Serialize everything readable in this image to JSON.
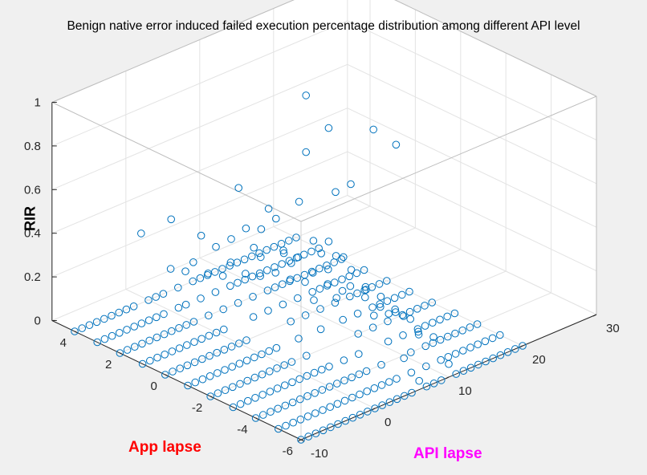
{
  "colors": {
    "background": "#f0f0f0",
    "pane": "#ffffff",
    "grid": "#e3e3e3",
    "axis": "#262626",
    "marker": "#0072bd",
    "xlabel_color": "#ff0000",
    "ylabel_color": "#ff00ff"
  },
  "chart_data": {
    "type": "scatter3",
    "title": "Benign native error induced failed execution percentage distribution among different API level",
    "xlabel": "App lapse",
    "ylabel": "API lapse",
    "zlabel": "RIR",
    "xlim": [
      -6,
      5
    ],
    "ylim": [
      -10,
      30
    ],
    "zlim": [
      0,
      1
    ],
    "xticks": [
      -6,
      -4,
      -2,
      0,
      2,
      4
    ],
    "yticks": [
      -10,
      0,
      10,
      20,
      30
    ],
    "zticks": [
      0,
      0.2,
      0.4,
      0.6,
      0.8,
      1
    ],
    "grid": true,
    "box": true,
    "marker": "circle",
    "grid_rows_app_lapse": [
      -6,
      -5,
      -4,
      -3,
      -2,
      -1,
      0,
      1,
      2,
      3,
      4
    ],
    "grid_cols_api_lapse": [
      -10,
      -9,
      -8,
      -7,
      -6,
      -5,
      -4,
      -3,
      -2,
      -1,
      0,
      1,
      2,
      3,
      4,
      5,
      6,
      7,
      8,
      9,
      10,
      11,
      12,
      13,
      14,
      15,
      16,
      17,
      18,
      19,
      20
    ],
    "baseline_rir": 0,
    "highlighted_points": [
      {
        "x": -2,
        "y": 6,
        "z": 1.0
      },
      {
        "x": -1,
        "y": 6,
        "z": 1.1
      },
      {
        "x": -1,
        "y": 6,
        "z": 0.84
      },
      {
        "x": -3,
        "y": 9,
        "z": 1.0
      },
      {
        "x": -4,
        "y": 9,
        "z": 0.98
      },
      {
        "x": -2,
        "y": 2,
        "z": 0.72
      },
      {
        "x": -2,
        "y": 9,
        "z": 0.7
      },
      {
        "x": -1,
        "y": 10,
        "z": 0.6
      },
      {
        "x": 1,
        "y": 3,
        "z": 0.62
      },
      {
        "x": 0,
        "y": 4,
        "z": 0.56
      },
      {
        "x": 0,
        "y": 5,
        "z": 0.5
      },
      {
        "x": 0,
        "y": 3,
        "z": 0.48
      },
      {
        "x": 3,
        "y": 0,
        "z": 0.42
      },
      {
        "x": 4,
        "y": -1,
        "z": 0.32
      },
      {
        "x": 2,
        "y": 1,
        "z": 0.38
      },
      {
        "x": 1,
        "y": 2,
        "z": 0.4
      },
      {
        "x": 0,
        "y": 2,
        "z": 0.41
      },
      {
        "x": -1,
        "y": 3,
        "z": 0.42
      },
      {
        "x": -2,
        "y": 5,
        "z": 0.44
      },
      {
        "x": -2,
        "y": 6,
        "z": 0.48
      },
      {
        "x": -3,
        "y": 6,
        "z": 0.4
      },
      {
        "x": -2,
        "y": 7,
        "z": 0.4
      },
      {
        "x": -1,
        "y": 7,
        "z": 0.42
      },
      {
        "x": -2,
        "y": 8,
        "z": 0.38
      },
      {
        "x": 1,
        "y": 4,
        "z": 0.42
      },
      {
        "x": 0,
        "y": 6,
        "z": 0.34
      },
      {
        "x": -3,
        "y": 4,
        "z": 0.3
      },
      {
        "x": -1,
        "y": 4,
        "z": 0.36
      },
      {
        "x": 2,
        "y": 3,
        "z": 0.3
      },
      {
        "x": -2,
        "y": 4,
        "z": 0.24
      },
      {
        "x": -4,
        "y": 6,
        "z": 0.24
      },
      {
        "x": -3,
        "y": 8,
        "z": 0.28
      },
      {
        "x": 1,
        "y": 6,
        "z": 0.26
      },
      {
        "x": 0,
        "y": 8,
        "z": 0.28
      },
      {
        "x": -1,
        "y": 9,
        "z": 0.26
      },
      {
        "x": -4,
        "y": 8,
        "z": 0.22
      },
      {
        "x": -3,
        "y": 10,
        "z": 0.22
      },
      {
        "x": 2,
        "y": 5,
        "z": 0.2
      },
      {
        "x": 3,
        "y": 3,
        "z": 0.18
      },
      {
        "x": -5,
        "y": 9,
        "z": 0.16
      },
      {
        "x": -2,
        "y": 11,
        "z": 0.2
      },
      {
        "x": 0,
        "y": 10,
        "z": 0.18
      },
      {
        "x": -4,
        "y": 10,
        "z": 0.18
      },
      {
        "x": 1,
        "y": 8,
        "z": 0.16
      },
      {
        "x": -1,
        "y": 12,
        "z": 0.14
      },
      {
        "x": -3,
        "y": 12,
        "z": 0.12
      },
      {
        "x": 2,
        "y": 7,
        "z": 0.12
      },
      {
        "x": -5,
        "y": 11,
        "z": 0.12
      },
      {
        "x": 1,
        "y": 10,
        "z": 0.1
      },
      {
        "x": 3,
        "y": 5,
        "z": 0.1
      },
      {
        "x": -2,
        "y": 13,
        "z": 0.08
      },
      {
        "x": 0,
        "y": 12,
        "z": 0.1
      },
      {
        "x": 4,
        "y": 3,
        "z": 0.1
      },
      {
        "x": -4,
        "y": 12,
        "z": 0.08
      },
      {
        "x": -5,
        "y": 7,
        "z": 0.08
      },
      {
        "x": 2,
        "y": 9,
        "z": 0.08
      },
      {
        "x": -1,
        "y": 14,
        "z": 0.06
      },
      {
        "x": 3,
        "y": 7,
        "z": 0.06
      },
      {
        "x": -3,
        "y": 14,
        "z": 0.06
      },
      {
        "x": 1,
        "y": 12,
        "z": 0.06
      },
      {
        "x": 0,
        "y": 14,
        "z": 0.04
      },
      {
        "x": 4,
        "y": 5,
        "z": 0.06
      },
      {
        "x": -2,
        "y": 15,
        "z": 0.04
      },
      {
        "x": -6,
        "y": 10,
        "z": 0.06
      },
      {
        "x": -6,
        "y": 6,
        "z": 0.04
      }
    ]
  }
}
